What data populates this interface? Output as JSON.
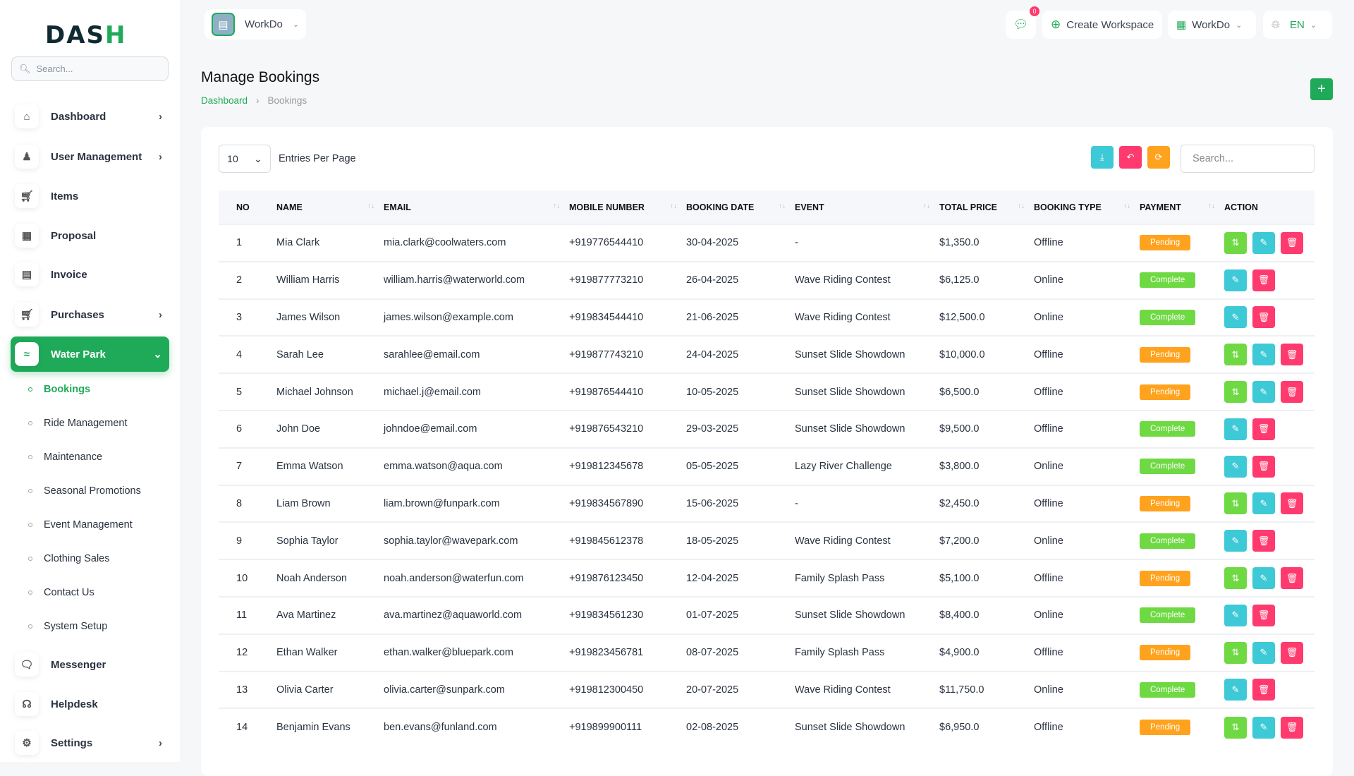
{
  "sidebar": {
    "logo": "DASH",
    "search_placeholder": "Search...",
    "items": [
      {
        "label": "Dashboard",
        "icon": "home-icon",
        "chev": true
      },
      {
        "label": "User Management",
        "icon": "users-icon",
        "chev": true
      },
      {
        "label": "Items",
        "icon": "cart-icon",
        "chev": false
      },
      {
        "label": "Proposal",
        "icon": "proposal-icon",
        "chev": false
      },
      {
        "label": "Invoice",
        "icon": "invoice-icon",
        "chev": false
      },
      {
        "label": "Purchases",
        "icon": "cart-icon",
        "chev": true
      },
      {
        "label": "Water Park",
        "icon": "swimming-icon",
        "chev": true,
        "active": true
      }
    ],
    "subitems": [
      "Bookings",
      "Ride Management",
      "Maintenance",
      "Seasonal Promotions",
      "Event Management",
      "Clothing Sales",
      "Contact Us",
      "System Setup"
    ],
    "bottom": [
      {
        "label": "Messenger",
        "icon": "chat-icon",
        "chev": false
      },
      {
        "label": "Helpdesk",
        "icon": "headset-icon",
        "chev": false
      },
      {
        "label": "Settings",
        "icon": "gear-icon",
        "chev": true
      }
    ]
  },
  "header": {
    "workspace": "WorkDo",
    "notif_count": "0",
    "create_workspace": "Create Workspace",
    "workspace2": "WorkDo",
    "lang": "EN"
  },
  "page": {
    "title": "Manage Bookings",
    "breadcrumb": [
      "Dashboard",
      "Bookings"
    ]
  },
  "table": {
    "per_page": "10",
    "per_page_label": "Entries Per Page",
    "search_placeholder": "Search...",
    "columns": [
      "NO",
      "NAME",
      "EMAIL",
      "MOBILE NUMBER",
      "BOOKING DATE",
      "EVENT",
      "TOTAL PRICE",
      "BOOKING TYPE",
      "PAYMENT",
      "ACTION"
    ],
    "rows": [
      [
        "1",
        "Mia Clark",
        "mia.clark@coolwaters.com",
        "+919776544410",
        "30-04-2025",
        "-",
        "$1,350.0",
        "Offline",
        "Pending"
      ],
      [
        "2",
        "William Harris",
        "william.harris@waterworld.com",
        "+919877773210",
        "26-04-2025",
        "Wave Riding Contest",
        "$6,125.0",
        "Online",
        "Complete"
      ],
      [
        "3",
        "James Wilson",
        "james.wilson@example.com",
        "+919834544410",
        "21-06-2025",
        "Wave Riding Contest",
        "$12,500.0",
        "Online",
        "Complete"
      ],
      [
        "4",
        "Sarah Lee",
        "sarahlee@email.com",
        "+919877743210",
        "24-04-2025",
        "Sunset Slide Showdown",
        "$10,000.0",
        "Offline",
        "Pending"
      ],
      [
        "5",
        "Michael Johnson",
        "michael.j@email.com",
        "+919876544410",
        "10-05-2025",
        "Sunset Slide Showdown",
        "$6,500.0",
        "Offline",
        "Pending"
      ],
      [
        "6",
        "John Doe",
        "johndoe@email.com",
        "+919876543210",
        "29-03-2025",
        "Sunset Slide Showdown",
        "$9,500.0",
        "Offline",
        "Complete"
      ],
      [
        "7",
        "Emma Watson",
        "emma.watson@aqua.com",
        "+919812345678",
        "05-05-2025",
        "Lazy River Challenge",
        "$3,800.0",
        "Online",
        "Complete"
      ],
      [
        "8",
        "Liam Brown",
        "liam.brown@funpark.com",
        "+919834567890",
        "15-06-2025",
        "-",
        "$2,450.0",
        "Offline",
        "Pending"
      ],
      [
        "9",
        "Sophia Taylor",
        "sophia.taylor@wavepark.com",
        "+919845612378",
        "18-05-2025",
        "Wave Riding Contest",
        "$7,200.0",
        "Online",
        "Complete"
      ],
      [
        "10",
        "Noah Anderson",
        "noah.anderson@waterfun.com",
        "+919876123450",
        "12-04-2025",
        "Family Splash Pass",
        "$5,100.0",
        "Offline",
        "Pending"
      ],
      [
        "11",
        "Ava Martinez",
        "ava.martinez@aquaworld.com",
        "+919834561230",
        "01-07-2025",
        "Sunset Slide Showdown",
        "$8,400.0",
        "Online",
        "Complete"
      ],
      [
        "12",
        "Ethan Walker",
        "ethan.walker@bluepark.com",
        "+919823456781",
        "08-07-2025",
        "Family Splash Pass",
        "$4,900.0",
        "Offline",
        "Pending"
      ],
      [
        "13",
        "Olivia Carter",
        "olivia.carter@sunpark.com",
        "+919812300450",
        "20-07-2025",
        "Wave Riding Contest",
        "$11,750.0",
        "Online",
        "Complete"
      ],
      [
        "14",
        "Benjamin Evans",
        "ben.evans@funland.com",
        "+919899900111",
        "02-08-2025",
        "Sunset Slide Showdown",
        "$6,950.0",
        "Offline",
        "Pending"
      ]
    ]
  },
  "colors": {
    "primary": "#1faa59",
    "pending": "#ffa21d",
    "complete": "#6fd943",
    "info": "#3ec9d6",
    "danger": "#ff3a6e"
  }
}
